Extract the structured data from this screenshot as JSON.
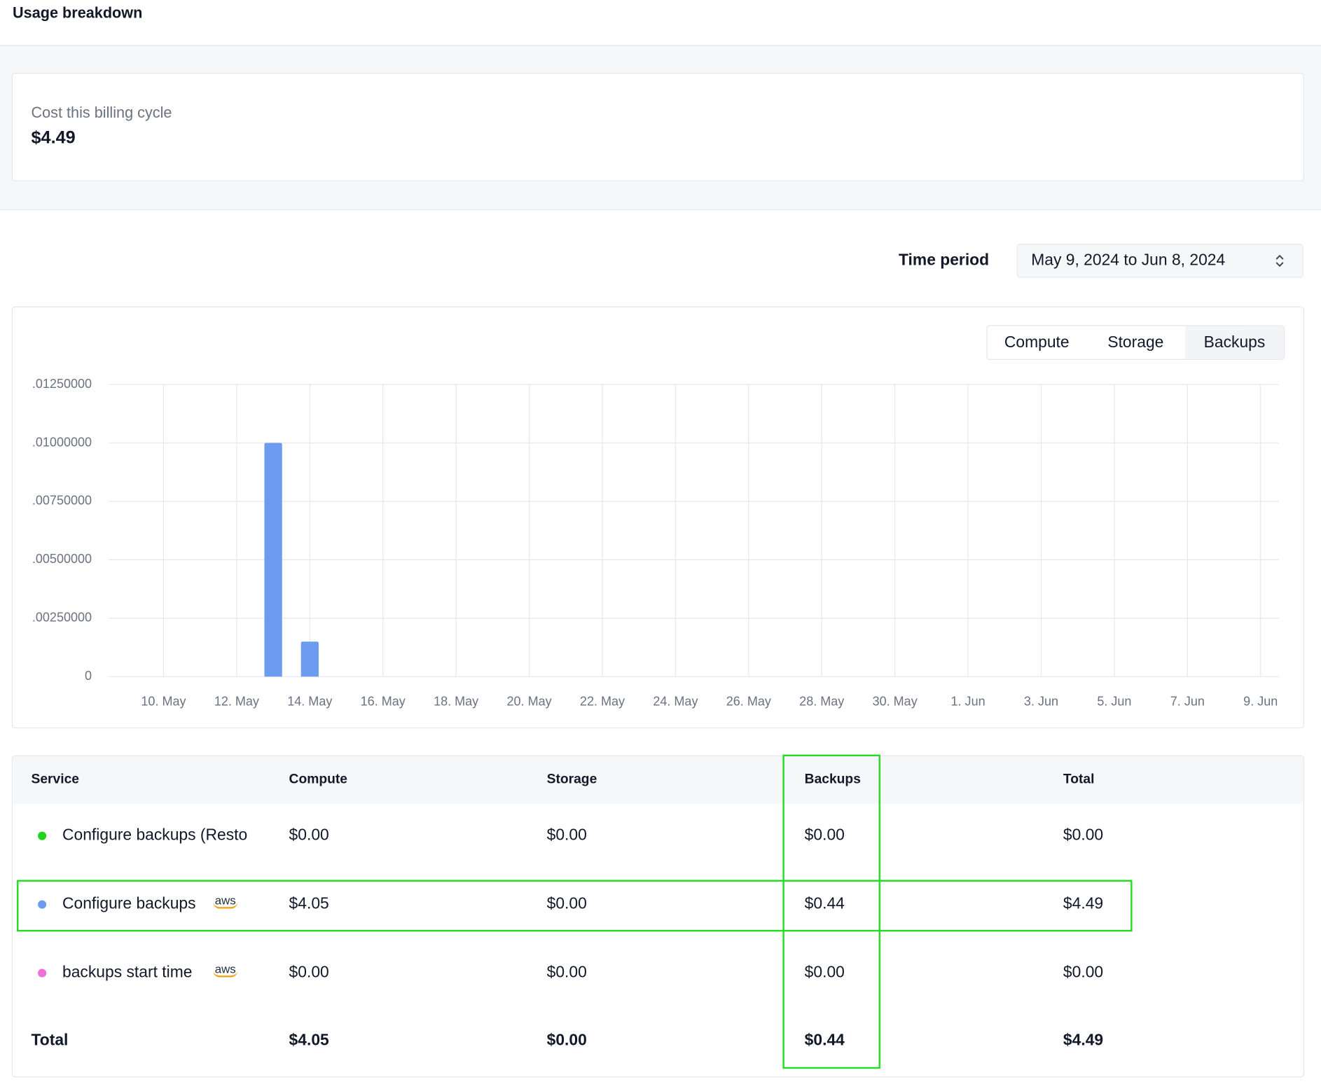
{
  "header": {
    "title": "Usage breakdown"
  },
  "summary": {
    "label": "Cost this billing cycle",
    "value": "$4.49"
  },
  "time_period": {
    "label": "Time period",
    "value": "May 9, 2024 to Jun 8, 2024"
  },
  "tabs": [
    "Compute",
    "Storage",
    "Backups"
  ],
  "chart_data": {
    "type": "bar",
    "color": "#6d9bef",
    "grid": true,
    "categories": [
      null,
      "10. May",
      null,
      "12. May",
      null,
      "14. May",
      null,
      "16. May",
      null,
      "18. May",
      null,
      "20. May",
      null,
      "22. May",
      null,
      "24. May",
      null,
      "26. May",
      null,
      "28. May",
      null,
      "30. May",
      null,
      "1. Jun",
      null,
      "3. Jun",
      null,
      "5. Jun",
      null,
      "7. Jun",
      null,
      "9. Jun"
    ],
    "values": [
      0,
      0,
      0,
      0,
      0.01,
      0.0015,
      0,
      0,
      0,
      0,
      0,
      0,
      0,
      0,
      0,
      0,
      0,
      0,
      0,
      0,
      0,
      0,
      0,
      0,
      0,
      0,
      0,
      0,
      0,
      0,
      0,
      0
    ],
    "ylim": [
      0,
      0.0125
    ],
    "yticks": [
      0,
      {
        "value": 0.0025,
        "label": ".00250000"
      },
      {
        "value": 0.005,
        "label": ".00500000"
      },
      {
        "value": 0.0075,
        "label": ".00750000"
      },
      {
        "value": 0.01,
        "label": ".01000000"
      },
      {
        "value": 0.0125,
        "label": ".01250000"
      }
    ]
  },
  "table": {
    "columns": [
      "Service",
      "Compute",
      "Storage",
      "Backups",
      "Total"
    ],
    "rows": [
      {
        "color": "#1ed41e",
        "cells": [
          "Configure backups (Resto",
          "$0.00",
          "$0.00",
          "$0.00",
          "$0.00"
        ]
      },
      {
        "color": "#6d9bef",
        "badge": "aws",
        "cells": [
          "Configure backups",
          "$4.05",
          "$0.00",
          "$0.44",
          "$4.49"
        ]
      },
      {
        "color": "#ef6fd8",
        "badge": "aws",
        "cells": [
          "backups start time",
          "$0.00",
          "$0.00",
          "$0.00",
          "$0.00"
        ]
      }
    ],
    "total": [
      "Total",
      "$4.05",
      "$0.00",
      "$0.44",
      "$4.49"
    ]
  }
}
